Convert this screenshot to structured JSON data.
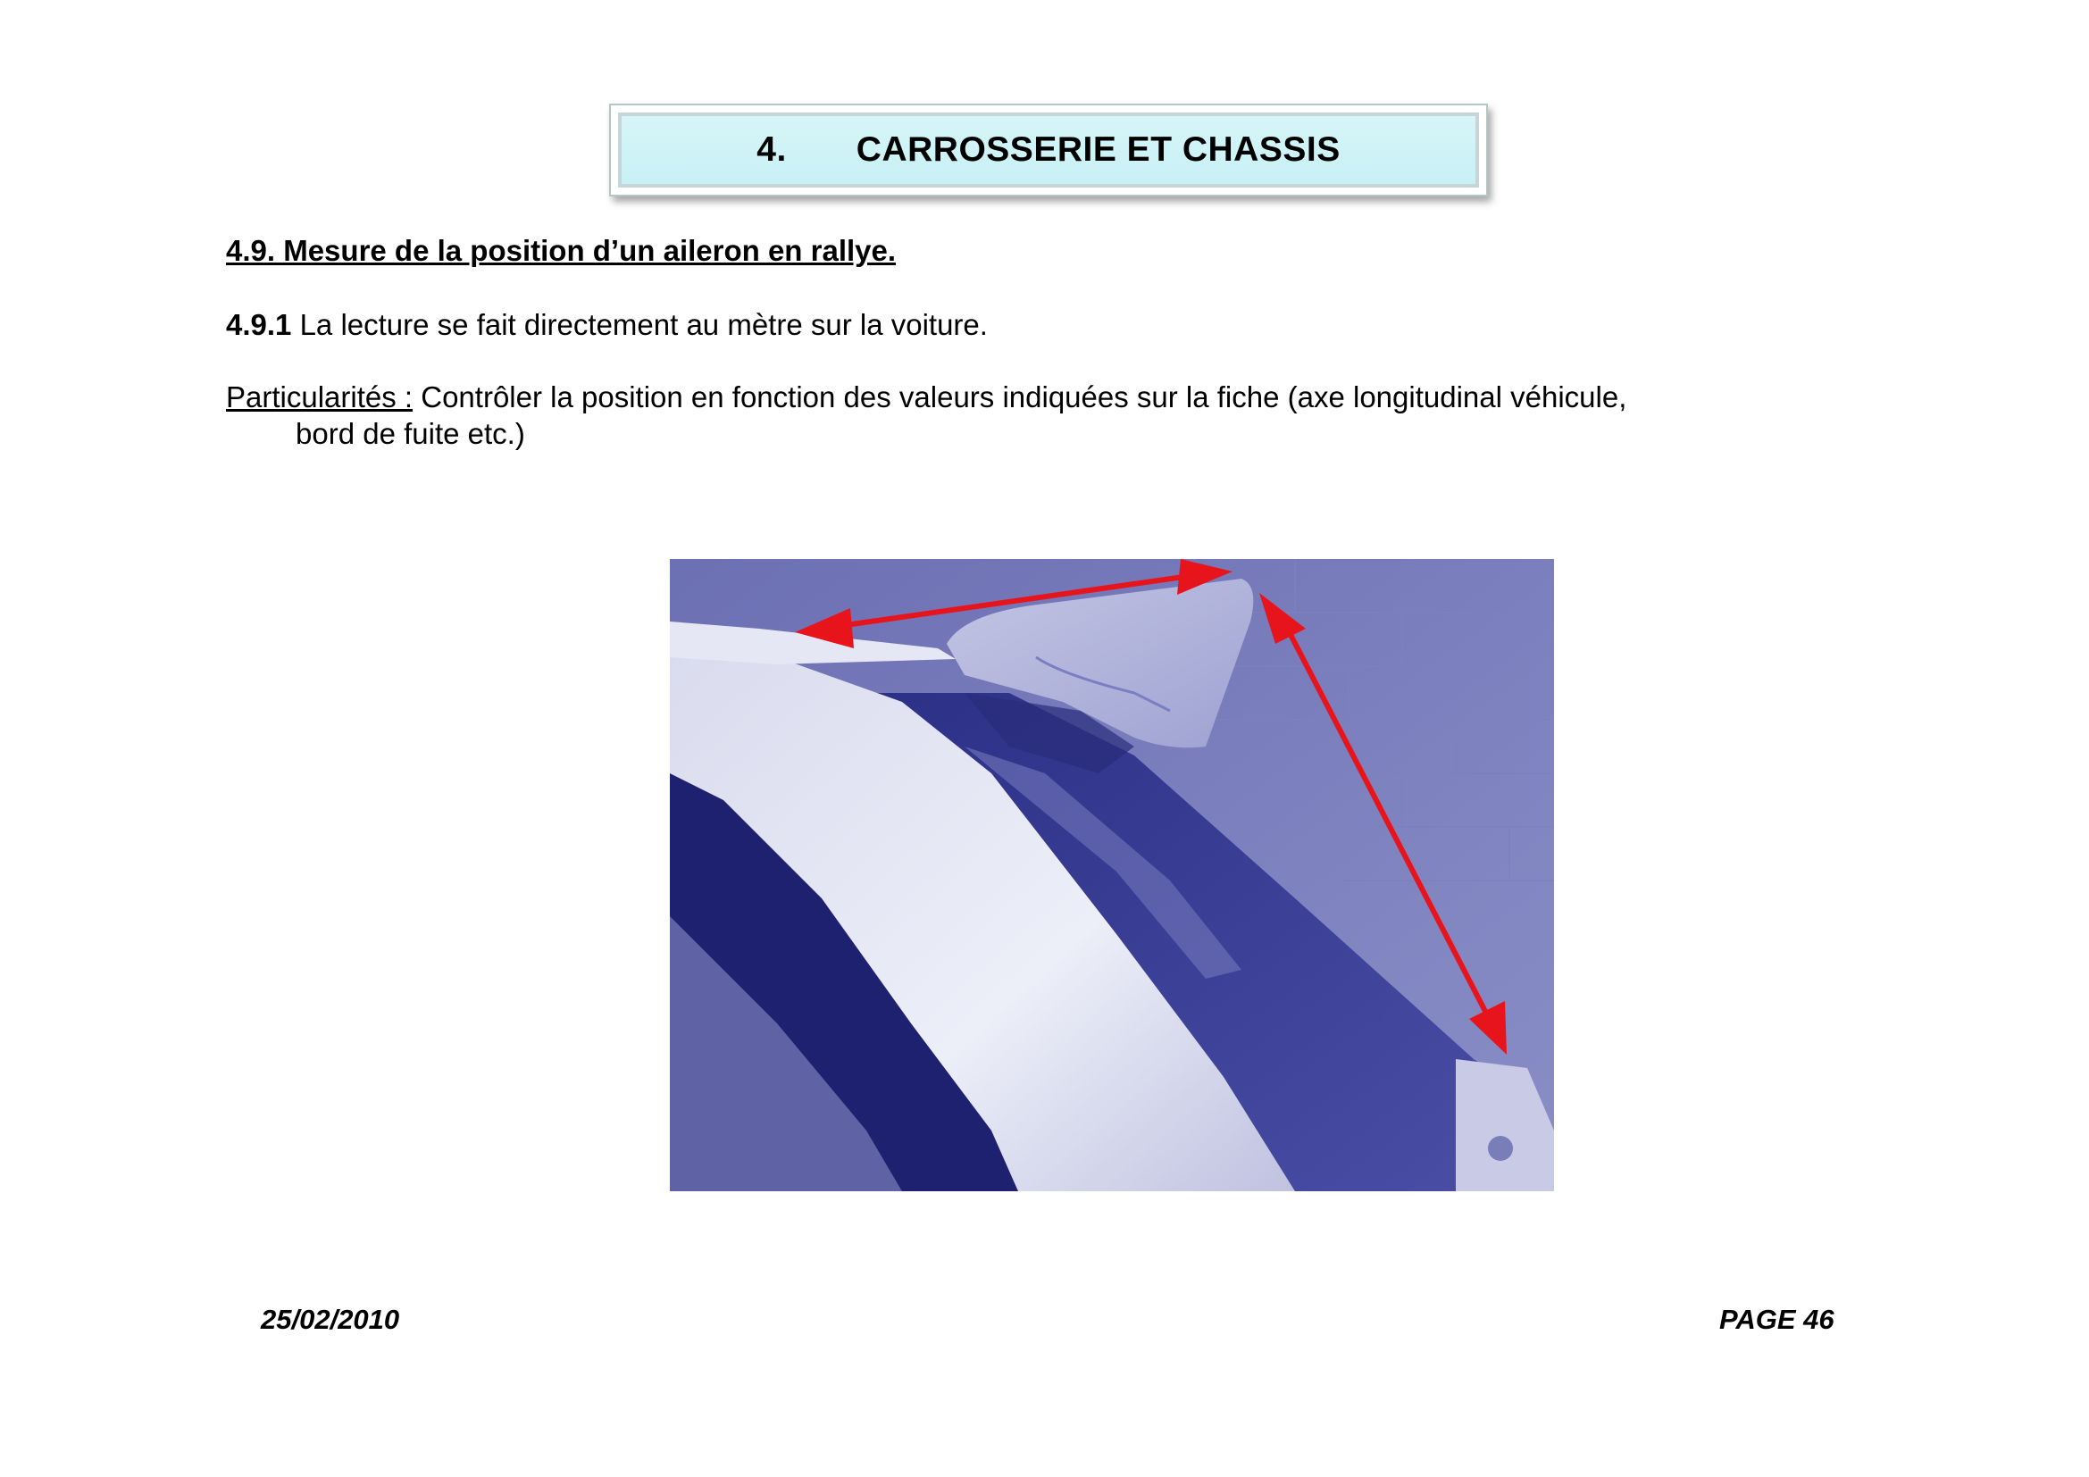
{
  "chapter": {
    "number": "4.",
    "title": "CARROSSERIE ET CHASSIS"
  },
  "section": {
    "title": "4.9. Mesure de la position d’un aileron en rallye."
  },
  "paragraph_1": {
    "number": "4.9.1",
    "text": " La lecture se fait directement au mètre sur la voiture."
  },
  "paragraph_2": {
    "label": "Particularités :",
    "text": " Contrôler la position en fonction des valeurs indiquées sur la fiche (axe longitudinal véhicule,",
    "continuation": "bord de fuite etc.)"
  },
  "photo": {
    "subject": "rear-wing-spoiler-photo",
    "tint_color": "#2a2a8c",
    "arrow_color": "#e8141c"
  },
  "footer": {
    "date": "25/02/2010",
    "page": "PAGE 46"
  }
}
